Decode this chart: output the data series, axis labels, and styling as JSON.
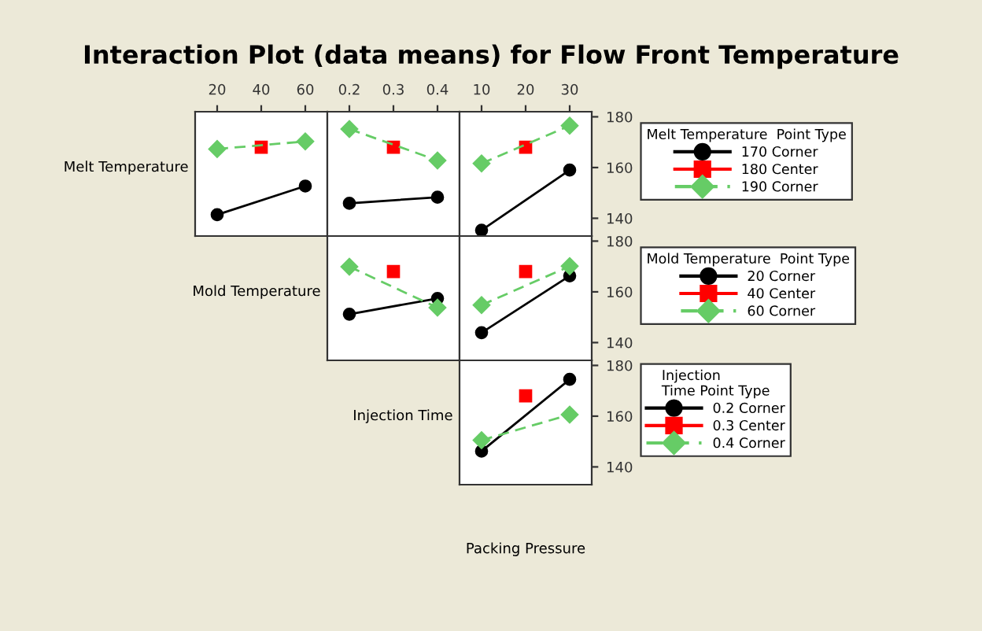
{
  "chart_data": [
    {
      "type": "line",
      "title": "Interaction Plot (data means) for Flow Front Temperature",
      "ylabel": "Melt Temperature",
      "x": [
        20,
        40,
        60
      ],
      "xlim": [
        10,
        70
      ],
      "xticks": [
        20,
        40,
        60
      ],
      "ylim": [
        133,
        182
      ],
      "tick_labels": "x",
      "grid": false,
      "legend": false,
      "series": [
        {
          "color": "#000000",
          "marker": "circle",
          "line_style": "solid",
          "values": [
            141.4,
            null,
            152.7
          ]
        },
        {
          "color": "#ff0000",
          "marker": "square",
          "line_style": "solid",
          "values": [
            null,
            168,
            null
          ]
        },
        {
          "color": "#66cc66",
          "marker": "diamond",
          "line_style": "dashed",
          "values": [
            167.3,
            null,
            170.3
          ]
        }
      ]
    },
    {
      "type": "line",
      "x": [
        0.2,
        0.3,
        0.4
      ],
      "xlim": [
        0.15,
        0.45
      ],
      "xticks": [
        0.2,
        0.3,
        0.4
      ],
      "ylim": [
        133,
        182
      ],
      "tick_labels": "x",
      "grid": false,
      "legend": false,
      "series": [
        {
          "color": "#000000",
          "marker": "circle",
          "line_style": "solid",
          "values": [
            145.9,
            null,
            148.3
          ]
        },
        {
          "color": "#ff0000",
          "marker": "square",
          "line_style": "solid",
          "values": [
            null,
            168,
            null
          ]
        },
        {
          "color": "#66cc66",
          "marker": "diamond",
          "line_style": "dashed",
          "values": [
            175.2,
            null,
            162.8
          ]
        }
      ]
    },
    {
      "type": "line",
      "x": [
        10,
        20,
        30
      ],
      "xlim": [
        5,
        35
      ],
      "xticks": [
        10,
        20,
        30
      ],
      "ylim": [
        133,
        182
      ],
      "yticks": [
        140,
        160,
        180
      ],
      "grid": false,
      "legend": "right",
      "legend_title": "Melt Temperature  Point Type",
      "series": [
        {
          "name": "170 Corner",
          "color": "#000000",
          "marker": "circle",
          "line_style": "solid",
          "values": [
            135.3,
            null,
            159.0
          ]
        },
        {
          "name": "180 Center",
          "color": "#ff0000",
          "marker": "square",
          "line_style": "solid",
          "values": [
            null,
            168,
            null
          ]
        },
        {
          "name": "190 Corner",
          "color": "#66cc66",
          "marker": "diamond",
          "line_style": "dashed",
          "values": [
            161.6,
            null,
            176.5
          ]
        }
      ]
    },
    {
      "type": "line",
      "ylabel": "Mold Temperature",
      "x": [
        0.2,
        0.3,
        0.4
      ],
      "xlim": [
        0.15,
        0.45
      ],
      "ylim": [
        133,
        182
      ],
      "tick_labels": false,
      "grid": false,
      "legend": false,
      "series": [
        {
          "color": "#000000",
          "marker": "circle",
          "line_style": "solid",
          "values": [
            151.2,
            null,
            157.4
          ]
        },
        {
          "color": "#ff0000",
          "marker": "square",
          "line_style": "solid",
          "values": [
            null,
            168,
            null
          ]
        },
        {
          "color": "#66cc66",
          "marker": "diamond",
          "line_style": "dashed",
          "values": [
            169.9,
            null,
            153.8
          ]
        }
      ]
    },
    {
      "type": "line",
      "x": [
        10,
        20,
        30
      ],
      "xlim": [
        5,
        35
      ],
      "ylim": [
        133,
        182
      ],
      "yticks": [
        140,
        160,
        180
      ],
      "tick_labels": "y",
      "grid": false,
      "legend": "right",
      "legend_title": "Mold Temperature  Point Type",
      "series": [
        {
          "name": "20 Corner",
          "color": "#000000",
          "marker": "circle",
          "line_style": "solid",
          "values": [
            143.9,
            null,
            166.3
          ]
        },
        {
          "name": "40 Center",
          "color": "#ff0000",
          "marker": "square",
          "line_style": "solid",
          "values": [
            null,
            168,
            null
          ]
        },
        {
          "name": "60 Corner",
          "color": "#66cc66",
          "marker": "diamond",
          "line_style": "dashed",
          "values": [
            154.8,
            null,
            170.1
          ]
        }
      ]
    },
    {
      "type": "line",
      "ylabel": "Injection Time",
      "xlabel": "Packing Pressure",
      "x": [
        10,
        20,
        30
      ],
      "xlim": [
        5,
        35
      ],
      "ylim": [
        133,
        182
      ],
      "yticks": [
        140,
        160,
        180
      ],
      "tick_labels": "y",
      "grid": false,
      "legend": "right",
      "legend_title": "Injection\nTime Point Type",
      "series": [
        {
          "name": "0.2 Corner",
          "color": "#000000",
          "marker": "circle",
          "line_style": "solid",
          "values": [
            146.2,
            null,
            174.5
          ]
        },
        {
          "name": "0.3 Center",
          "color": "#ff0000",
          "marker": "square",
          "line_style": "solid",
          "values": [
            null,
            168,
            null
          ]
        },
        {
          "name": "0.4 Corner",
          "color": "#66cc66",
          "marker": "diamond",
          "line_style": "dashed",
          "values": [
            150.5,
            null,
            160.6
          ]
        }
      ]
    }
  ]
}
